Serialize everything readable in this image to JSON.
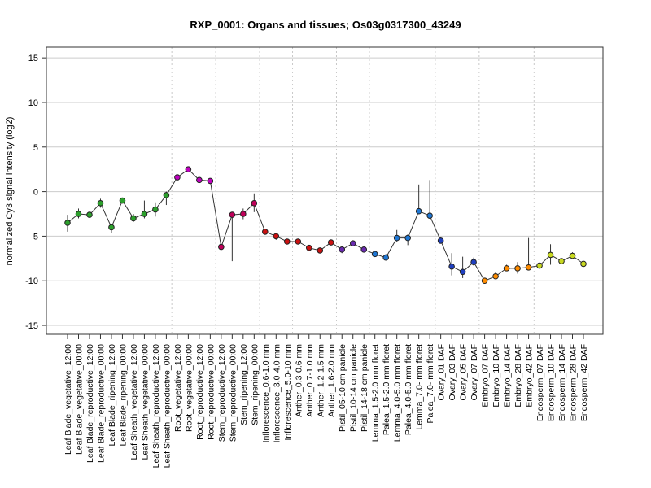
{
  "chart_data": {
    "type": "line",
    "title": "RXP_0001: Organs and tissues; Os03g0317300_43249",
    "xlabel": "",
    "ylabel": "normalized Cy3 signal intensity (log2)",
    "ylim": [
      -16,
      16.2
    ],
    "yticks": [
      -15,
      -10,
      -5,
      0,
      5,
      10,
      15
    ],
    "grid": true,
    "line_color": "#333333",
    "categories": [
      "Leaf Blade_vegetative_12:00",
      "Leaf Blade_vegetative_00:00",
      "Leaf Blade_reproductive_12:00",
      "Leaf Blade_reproductive_00:00",
      "Leaf Blade_ripening_12:00",
      "Leaf Blade_ripening_00:00",
      "Leaf Sheath_vegetative_12:00",
      "Leaf Sheath_vegetative_00:00",
      "Leaf Sheath_reproductive_12:00",
      "Leaf Sheath_reproductive_00:00",
      "Root_vegetative_12:00",
      "Root_vegetative_00:00",
      "Root_reproductive_12:00",
      "Root_reproductive_00:00",
      "Stem_reproductive_12:00",
      "Stem_reproductive_00:00",
      "Stem_ripening_12:00",
      "Stem_ripening_00:00",
      "Inflorescence_0.6-1.0 mm",
      "Inflorescence_3.0-4.0 mm",
      "Inflorescence_5.0-10 mm",
      "Anther_0.3-0.6 mm",
      "Anther_0.7-1.0 mm",
      "Anther_1.2-1.5 mm",
      "Anther_1.6-2.0 mm",
      "Pistil_05-10 cm panicle",
      "Pistil_10-14 cm panicle",
      "Pistil_14-18 cm panicle",
      "Lemma_1.5-2.0 mm floret",
      "Palea_1.5-2.0 mm floret",
      "Lemma_4.0-5.0 mm floret",
      "Palea_4.0-5.0 mm floret",
      "Lemma_7.0- mm floret",
      "Palea_7.0- mm floret",
      "Ovary_01 DAF",
      "Ovary_03 DAF",
      "Ovary_05 DAF",
      "Ovary_07 DAF",
      "Embryo_07 DAF",
      "Embryo_10 DAF",
      "Embryo_14 DAF",
      "Embryo_28 DAF",
      "Embryo_42 DAF",
      "Endosperm_07 DAF",
      "Endosperm_10 DAF",
      "Endosperm_14 DAF",
      "Endosperm_28 DAF",
      "Endosperm_42 DAF"
    ],
    "values": [
      -3.5,
      -2.5,
      -2.6,
      -1.3,
      -4.0,
      -1.0,
      -3.0,
      -2.5,
      -2.0,
      -0.4,
      1.6,
      2.5,
      1.3,
      1.2,
      -6.2,
      -2.6,
      -2.5,
      -1.3,
      -4.5,
      -5.0,
      -5.6,
      -5.6,
      -6.3,
      -6.6,
      -5.7,
      -6.5,
      -5.8,
      -6.5,
      -7.0,
      -7.4,
      -5.2,
      -5.2,
      -2.2,
      -2.7,
      -5.5,
      -8.4,
      -9.0,
      -7.9,
      -10.0,
      -9.5,
      -8.6,
      -8.6,
      -8.5,
      -8.3,
      -7.1,
      -7.8,
      -7.2,
      -8.1
    ],
    "err_low": [
      -4.5,
      -3.0,
      -2.9,
      -1.8,
      -4.6,
      -1.2,
      -3.4,
      -3.0,
      -2.8,
      -1.5,
      1.3,
      2.2,
      1.0,
      1.0,
      -6.4,
      -7.8,
      -3.1,
      -2.3,
      -4.8,
      -5.4,
      -5.9,
      -5.8,
      -6.6,
      -6.8,
      -6.0,
      -6.9,
      -6.1,
      -6.8,
      -7.3,
      -7.6,
      -5.6,
      -6.0,
      -2.4,
      -2.9,
      -5.8,
      -9.4,
      -9.7,
      -8.3,
      -10.2,
      -9.8,
      -8.9,
      -9.2,
      -8.7,
      -8.6,
      -8.2,
      -8.1,
      -7.5,
      -8.3
    ],
    "err_high": [
      -2.6,
      -1.9,
      -2.3,
      -0.8,
      -3.6,
      -0.8,
      -2.5,
      -1.0,
      -1.2,
      0.0,
      1.9,
      2.8,
      1.6,
      1.4,
      -5.9,
      -2.4,
      -1.9,
      -0.2,
      -4.2,
      -4.6,
      -5.4,
      -5.4,
      -6.0,
      -6.4,
      -5.4,
      -6.1,
      -5.5,
      -6.2,
      -6.7,
      -7.0,
      -4.3,
      -4.8,
      0.8,
      1.3,
      -5.1,
      -6.9,
      -7.3,
      -7.4,
      -9.8,
      -9.0,
      -8.2,
      -7.9,
      -5.2,
      -8.0,
      -5.9,
      -7.5,
      -6.8,
      -7.9
    ],
    "colors": [
      "#2ca02c",
      "#2ca02c",
      "#2ca02c",
      "#2ca02c",
      "#2ca02c",
      "#2ca02c",
      "#2ca02c",
      "#2ca02c",
      "#2ca02c",
      "#2ca02c",
      "#c000c0",
      "#c000c0",
      "#c000c0",
      "#c000c0",
      "#c0005a",
      "#c0005a",
      "#c0005a",
      "#c0005a",
      "#cc1111",
      "#cc1111",
      "#cc1111",
      "#cc1111",
      "#cc1111",
      "#cc1111",
      "#cc1111",
      "#6a2bb0",
      "#6a2bb0",
      "#6a2bb0",
      "#1f77d4",
      "#1f77d4",
      "#1f77d4",
      "#1f77d4",
      "#1f77d4",
      "#1f77d4",
      "#1f3fc0",
      "#1f3fc0",
      "#1f3fc0",
      "#1f3fc0",
      "#ff8c00",
      "#ff8c00",
      "#ff8c00",
      "#ff8c00",
      "#ff8c00",
      "#c8d820",
      "#c8d820",
      "#c8d820",
      "#c8d820",
      "#c8d820"
    ],
    "group_dividers_after": [
      9,
      13,
      17,
      20,
      24,
      27,
      33,
      37,
      42
    ]
  }
}
